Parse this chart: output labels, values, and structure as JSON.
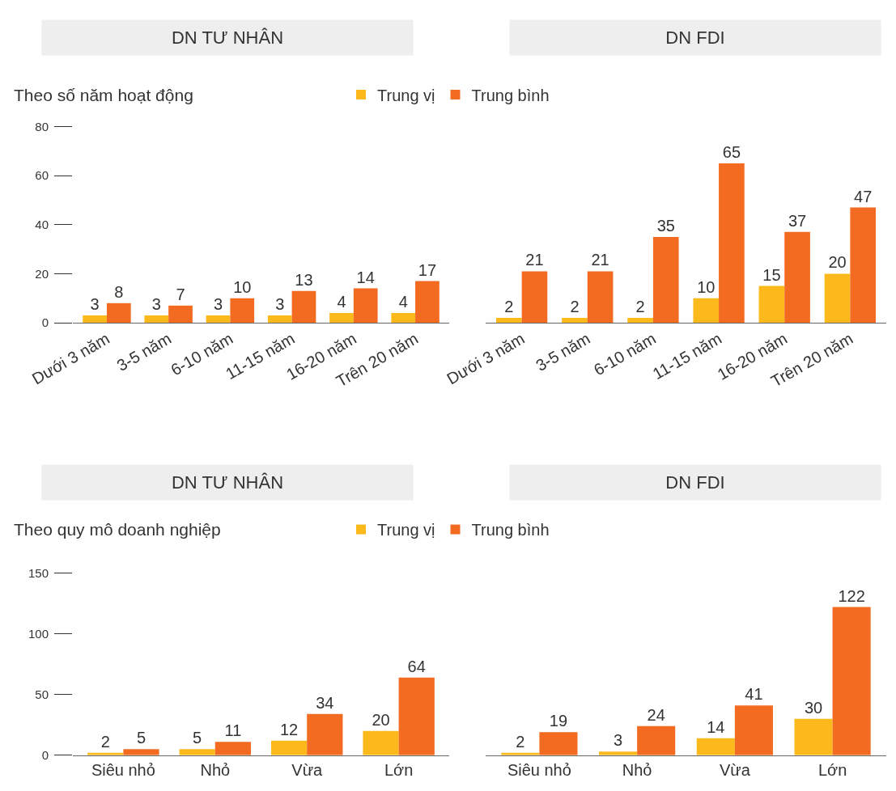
{
  "chart_data": [
    {
      "type": "bar",
      "title": "DN TƯ NHÂN",
      "subtitle": "Theo số năm hoạt động",
      "categories": [
        "Dưới 3 năm",
        "3-5 năm",
        "6-10 năm",
        "11-15 năm",
        "16-20 năm",
        "Trên 20 năm"
      ],
      "series": [
        {
          "name": "Trung vị",
          "color": "#fbb91b",
          "values": [
            3,
            3,
            3,
            3,
            4,
            4
          ]
        },
        {
          "name": "Trung bình",
          "color": "#f26b21",
          "values": [
            8,
            7,
            10,
            13,
            14,
            17
          ]
        }
      ],
      "ylim": [
        0,
        80
      ],
      "yticks": [
        0,
        20,
        40,
        60,
        80
      ],
      "data_labels": true,
      "legend": "top"
    },
    {
      "type": "bar",
      "title": "DN FDI",
      "categories": [
        "Dưới 3 năm",
        "3-5 năm",
        "6-10 năm",
        "11-15 năm",
        "16-20 năm",
        "Trên 20 năm"
      ],
      "series": [
        {
          "color": "#fbb91b",
          "values": [
            2,
            2,
            2,
            10,
            15,
            20
          ]
        },
        {
          "color": "#f26b21",
          "values": [
            21,
            21,
            35,
            65,
            37,
            47
          ]
        }
      ],
      "ylim": [
        0,
        80
      ],
      "yticks": [
        0,
        20,
        40,
        60,
        80
      ],
      "tick_labels": "x",
      "data_labels": true
    },
    {
      "type": "bar",
      "title": "DN TƯ NHÂN",
      "subtitle": "Theo quy mô doanh nghiệp",
      "categories": [
        "Siêu nhỏ",
        "Nhỏ",
        "Vừa",
        "Lớn"
      ],
      "series": [
        {
          "name": "Trung vị",
          "color": "#fbb91b",
          "values": [
            2,
            5,
            12,
            20
          ]
        },
        {
          "name": "Trung bình",
          "color": "#f26b21",
          "values": [
            5,
            11,
            34,
            64
          ]
        }
      ],
      "ylim": [
        0,
        150
      ],
      "yticks": [
        0,
        50,
        100,
        150
      ],
      "data_labels": true,
      "legend": "top"
    },
    {
      "type": "bar",
      "title": "DN FDI",
      "categories": [
        "Siêu nhỏ",
        "Nhỏ",
        "Vừa",
        "Lớn"
      ],
      "series": [
        {
          "color": "#fbb91b",
          "values": [
            2,
            3,
            14,
            30
          ]
        },
        {
          "color": "#f26b21",
          "values": [
            19,
            24,
            41,
            122
          ]
        }
      ],
      "ylim": [
        0,
        150
      ],
      "yticks": [
        0,
        50,
        100,
        150
      ],
      "tick_labels": "x",
      "data_labels": true
    }
  ]
}
